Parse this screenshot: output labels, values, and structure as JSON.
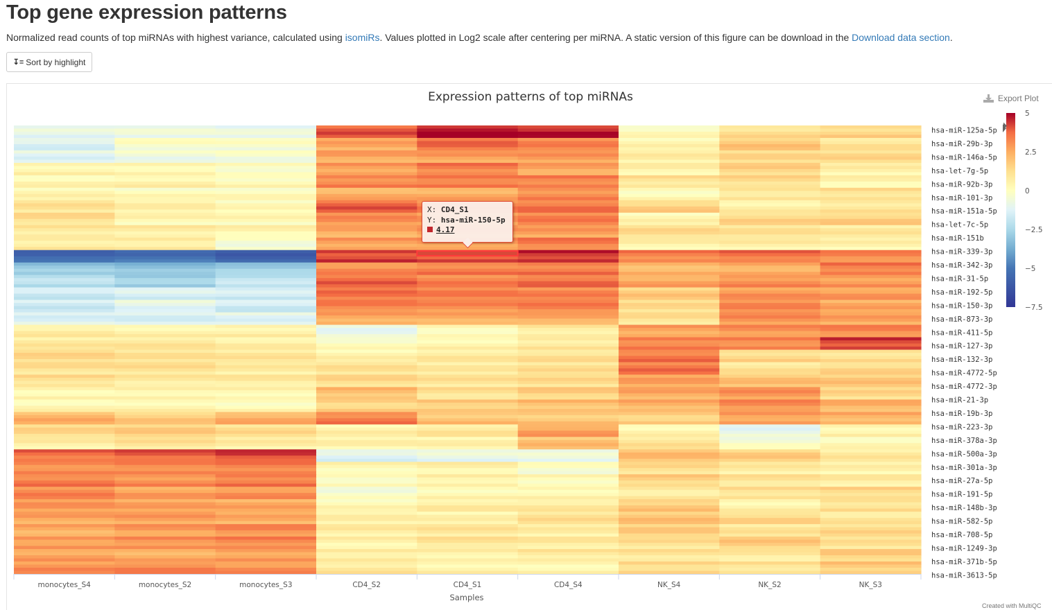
{
  "page": {
    "title": "Top gene expression patterns",
    "desc_before_link1": "Normalized read counts of top miRNAs with highest variance, calculated using ",
    "link1": "isomiRs",
    "desc_middle": ". Values plotted in Log2 scale after centering per miRNA. A static version of this figure can be download in the ",
    "link2": "Download data section",
    "desc_end": ".",
    "sort_button": "Sort by highlight"
  },
  "export_label": "Export Plot",
  "credit": "Created with MultiQC",
  "tooltip": {
    "x_prefix": "X: ",
    "x_value": "CD4_S1",
    "y_prefix": "Y: ",
    "y_value": "hsa-miR-150-5p",
    "value": "4.17"
  },
  "chart_data": {
    "type": "heatmap",
    "title": "Expression patterns of top miRNAs",
    "xlabel": "Samples",
    "x_categories": [
      "monocytes_S4",
      "monocytes_S2",
      "monocytes_S3",
      "CD4_S2",
      "CD4_S1",
      "CD4_S4",
      "NK_S4",
      "NK_S2",
      "NK_S3"
    ],
    "y_labels_shown": [
      "hsa-miR-125a-5p",
      "hsa-miR-29b-3p",
      "hsa-miR-146a-5p",
      "hsa-let-7g-5p",
      "hsa-miR-92b-3p",
      "hsa-miR-101-3p",
      "hsa-miR-151a-5p",
      "hsa-let-7c-5p",
      "hsa-miR-151b",
      "hsa-miR-339-3p",
      "hsa-miR-342-3p",
      "hsa-miR-31-5p",
      "hsa-miR-192-5p",
      "hsa-miR-150-3p",
      "hsa-miR-873-3p",
      "hsa-miR-411-5p",
      "hsa-miR-127-3p",
      "hsa-miR-132-3p",
      "hsa-miR-4772-5p",
      "hsa-miR-4772-3p",
      "hsa-miR-21-3p",
      "hsa-miR-19b-3p",
      "hsa-miR-223-3p",
      "hsa-miR-378a-3p",
      "hsa-miR-500a-3p",
      "hsa-miR-301a-3p",
      "hsa-miR-27a-5p",
      "hsa-miR-191-5p",
      "hsa-miR-148b-3p",
      "hsa-miR-582-5p",
      "hsa-miR-708-5p",
      "hsa-miR-1249-3p",
      "hsa-miR-371b-5p",
      "hsa-miR-3613-5p"
    ],
    "colorscale": {
      "min": -7.5,
      "max": 5,
      "ticks": [
        5,
        2.5,
        0,
        -2.5,
        -5,
        -7.5
      ],
      "tick_labels": [
        "5",
        "2.5",
        "0",
        "−2.5",
        "−5",
        "−7.5"
      ],
      "stops": [
        [
          -7.5,
          "#313695"
        ],
        [
          -5,
          "#4575b4"
        ],
        [
          -3.75,
          "#74add1"
        ],
        [
          -2.5,
          "#abd9e9"
        ],
        [
          -1.25,
          "#e0f3f8"
        ],
        [
          0,
          "#ffffbf"
        ],
        [
          1.25,
          "#fee090"
        ],
        [
          2.5,
          "#fdae61"
        ],
        [
          3.75,
          "#f46d43"
        ],
        [
          5,
          "#a50026"
        ]
      ]
    },
    "highlight": {
      "x": "CD4_S1",
      "y": "hsa-miR-150-5p",
      "value": 4.17
    },
    "values": [
      [
        -1.0,
        -0.8,
        -0.9,
        3.9,
        4.8,
        4.6,
        0.1,
        1.2,
        1.5
      ],
      [
        -1.3,
        -0.2,
        -0.3,
        2.5,
        3.6,
        3.2,
        0.3,
        1.8,
        1.0
      ],
      [
        -1.1,
        -0.6,
        -0.4,
        2.6,
        2.7,
        2.8,
        0.6,
        1.3,
        1.3
      ],
      [
        0.5,
        0.4,
        0.0,
        2.8,
        3.4,
        2.6,
        0.5,
        1.5,
        0.5
      ],
      [
        0.3,
        0.5,
        0.2,
        3.3,
        3.5,
        3.4,
        1.1,
        1.3,
        0.4
      ],
      [
        0.3,
        0.1,
        0.1,
        2.4,
        2.5,
        3.2,
        0.2,
        1.0,
        1.2
      ],
      [
        1.0,
        0.5,
        0.1,
        3.8,
        3.3,
        3.5,
        1.6,
        0.6,
        1.0
      ],
      [
        1.2,
        0.3,
        0.2,
        3.0,
        2.8,
        3.3,
        0.3,
        1.4,
        1.6
      ],
      [
        0.9,
        0.7,
        0.4,
        2.5,
        2.8,
        2.7,
        1.2,
        1.0,
        0.8
      ],
      [
        0.8,
        0.8,
        -0.3,
        2.8,
        2.9,
        3.4,
        0.5,
        0.6,
        0.4
      ],
      [
        -5.5,
        -5.2,
        -5.8,
        4.3,
        4.17,
        4.5,
        3.4,
        3.6,
        3.2
      ],
      [
        -3.0,
        -3.2,
        -2.8,
        3.1,
        3.4,
        3.5,
        2.3,
        2.5,
        3.5
      ],
      [
        -2.2,
        -2.8,
        -2.0,
        3.7,
        3.3,
        3.6,
        2.6,
        3.1,
        2.9
      ],
      [
        -1.7,
        -1.4,
        -1.6,
        3.5,
        3.3,
        3.2,
        1.7,
        2.9,
        2.8
      ],
      [
        -1.6,
        -1.0,
        -1.6,
        3.3,
        3.1,
        3.3,
        1.2,
        3.1,
        2.5
      ],
      [
        -1.2,
        -1.3,
        -1.1,
        2.6,
        2.5,
        2.5,
        1.1,
        3.0,
        2.6
      ],
      [
        0.7,
        0.5,
        0.6,
        -0.8,
        0.2,
        0.8,
        2.7,
        3.0,
        3.2
      ],
      [
        0.8,
        0.9,
        0.6,
        0.0,
        0.4,
        0.9,
        3.4,
        3.3,
        4.3
      ],
      [
        1.3,
        1.0,
        0.9,
        0.4,
        0.8,
        1.1,
        3.5,
        1.4,
        1.2
      ],
      [
        1.1,
        1.1,
        0.7,
        1.0,
        0.7,
        1.1,
        3.5,
        1.0,
        1.4
      ],
      [
        1.2,
        0.8,
        0.8,
        1.3,
        1.0,
        1.2,
        2.6,
        1.9,
        1.8
      ],
      [
        0.4,
        0.5,
        0.4,
        2.1,
        1.1,
        1.6,
        2.5,
        2.9,
        1.3
      ],
      [
        0.3,
        0.4,
        0.2,
        1.6,
        1.8,
        2.1,
        2.4,
        3.1,
        2.3
      ],
      [
        2.3,
        1.7,
        2.4,
        3.4,
        2.0,
        1.9,
        1.7,
        2.8,
        2.4
      ],
      [
        1.3,
        1.6,
        1.2,
        0.5,
        0.9,
        2.7,
        0.4,
        -0.9,
        0.5
      ],
      [
        0.6,
        1.0,
        0.6,
        0.4,
        0.4,
        2.0,
        1.0,
        -0.3,
        0.2
      ],
      [
        3.7,
        3.9,
        4.2,
        -1.2,
        -0.9,
        -0.8,
        2.0,
        1.6,
        0.8
      ],
      [
        3.2,
        3.3,
        3.4,
        0.3,
        0.5,
        -0.2,
        1.2,
        0.7,
        0.4
      ],
      [
        3.4,
        3.1,
        3.5,
        0.1,
        0.6,
        0.2,
        1.6,
        1.0,
        0.7
      ],
      [
        3.2,
        2.7,
        3.0,
        -0.3,
        0.3,
        0.4,
        0.8,
        1.2,
        1.4
      ],
      [
        2.8,
        2.6,
        2.5,
        0.2,
        0.7,
        0.8,
        1.8,
        0.5,
        1.2
      ],
      [
        2.6,
        2.7,
        2.4,
        0.5,
        0.4,
        1.1,
        1.9,
        1.4,
        0.9
      ],
      [
        2.5,
        2.8,
        3.1,
        0.7,
        0.9,
        0.6,
        1.6,
        0.9,
        1.3
      ],
      [
        2.9,
        3.1,
        3.3,
        0.5,
        1.0,
        0.8,
        1.1,
        1.7,
        1.0
      ],
      [
        2.7,
        2.5,
        2.8,
        0.8,
        0.6,
        0.9,
        1.0,
        0.8,
        1.6
      ],
      [
        3.0,
        3.2,
        3.0,
        0.9,
        0.5,
        0.4,
        1.4,
        1.1,
        1.8
      ]
    ]
  }
}
